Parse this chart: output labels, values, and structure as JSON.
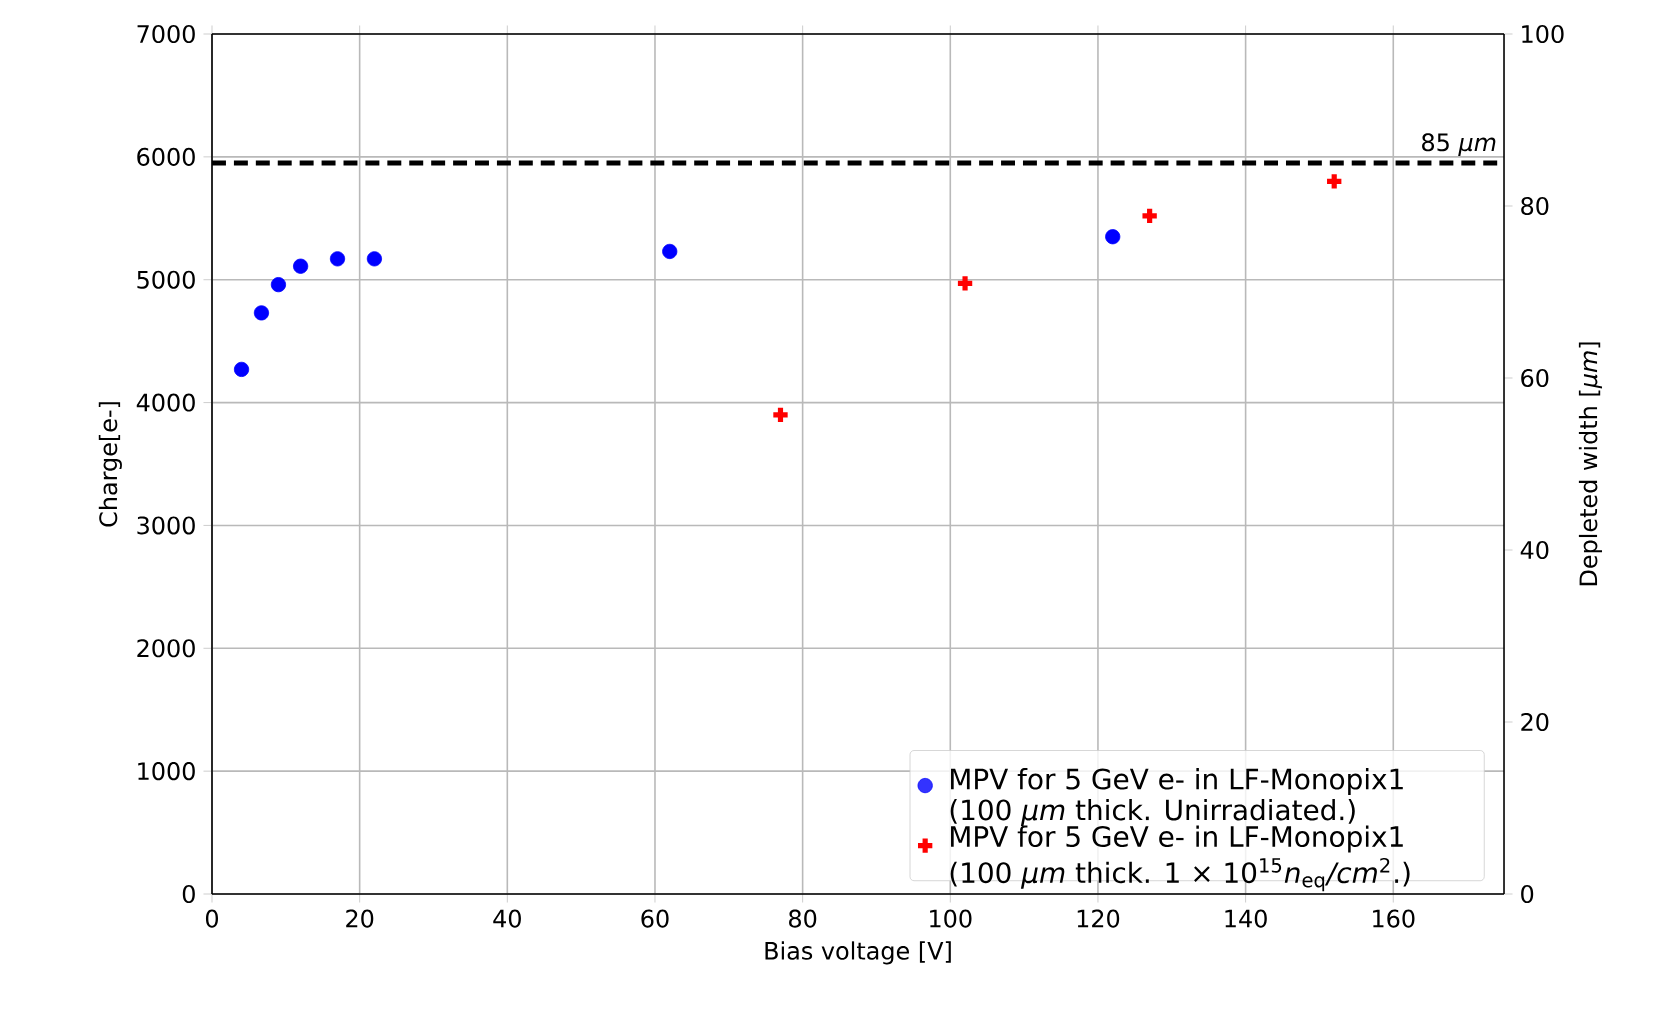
{
  "chart_data": {
    "type": "scatter",
    "xlabel": "Bias voltage [V]",
    "ylabel": "Charge[e-]",
    "y2label": "Depleted width [*μm*]",
    "xlim": [
      0,
      175
    ],
    "xticks": [
      0,
      20,
      40,
      60,
      80,
      100,
      120,
      140,
      160
    ],
    "ylim": [
      0,
      7000
    ],
    "yticks": [
      0,
      1000,
      2000,
      3000,
      4000,
      5000,
      6000,
      7000
    ],
    "y2lim": [
      0,
      100
    ],
    "y2ticks": [
      0,
      20,
      40,
      60,
      80,
      100
    ],
    "grid": true,
    "legend": "bottom right",
    "series": [
      {
        "name": "MPV for 5 GeV e- in LF-Monopix1 (100 *μm* thick. Unirradiated.)",
        "color": "#0000ff",
        "marker": "circle",
        "x": [
          4,
          6.7,
          9,
          12,
          17,
          22,
          62,
          122
        ],
        "values": [
          4270,
          4730,
          4960,
          5110,
          5170,
          5170,
          5230,
          5350
        ]
      },
      {
        "name": "MPV for 5 GeV e- in LF-Monopix1 (100 *μm* thick. 1 × 10$^{15}$*n*$_{eq}$*/cm*$^{2}$.)",
        "color": "#ff0000",
        "marker": "cross",
        "x": [
          77,
          102,
          127,
          152
        ],
        "values": [
          3900,
          4970,
          5520,
          5800
        ]
      }
    ],
    "ref_lines": [
      {
        "axis": "y2",
        "value": 85,
        "label": "85 *μm*",
        "color": "#000000",
        "line_style": "dashed"
      }
    ]
  }
}
